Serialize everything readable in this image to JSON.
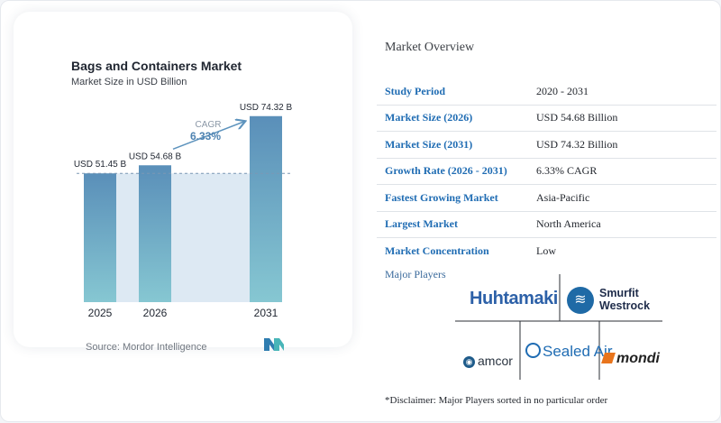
{
  "chart_data": {
    "type": "bar",
    "title": "Bags and Containers Market",
    "subtitle": "Market Size in USD Billion",
    "categories": [
      "2025",
      "2026",
      "2031"
    ],
    "values": [
      51.45,
      54.68,
      74.32
    ],
    "data_labels": [
      "USD 51.45 B",
      "USD 54.68 B",
      "USD 74.32 B"
    ],
    "ylim": [
      0,
      80
    ],
    "reference_line_value": 51.45,
    "cagr_label": "CAGR",
    "cagr_value": "6.33%",
    "source": "Source: Mordor Intelligence",
    "bar_gradient_top": "#5a8fb9",
    "bar_gradient_bottom": "#86c7d2",
    "band_color": "#dde9f3",
    "arrow_color": "#5d93bd"
  },
  "overview": {
    "title": "Market Overview",
    "rows": [
      {
        "key": "Study Period",
        "value": "2020 - 2031"
      },
      {
        "key": "Market Size (2026)",
        "value": "USD 54.68 Billion"
      },
      {
        "key": "Market Size (2031)",
        "value": "USD 74.32 Billion"
      },
      {
        "key": "Growth Rate (2026 - 2031)",
        "value": "6.33% CAGR"
      },
      {
        "key": "Fastest Growing Market",
        "value": "Asia-Pacific"
      },
      {
        "key": "Largest Market",
        "value": "North America"
      },
      {
        "key": "Market Concentration",
        "value": "Low"
      }
    ],
    "key_color": "#1f6cb3"
  },
  "players": {
    "title": "Major Players",
    "logos": {
      "huhtamaki": "Huhtamaki",
      "smurfit_line1": "Smurfit",
      "smurfit_line2": "Westrock",
      "amcor": "amcor",
      "sealed_air": "Sealed Air",
      "mondi": "mondi"
    },
    "icons": {
      "huhtamaki": "huhtamaki-wordmark",
      "smurfit": "smurfit-westrock-badge-icon",
      "amcor": "amcor-circle-icon",
      "sealed_air": "sealed-air-ring-icon",
      "mondi": "mondi-parallelogram-icon"
    },
    "disclaimer": "*Disclaimer: Major Players sorted in no particular order"
  }
}
